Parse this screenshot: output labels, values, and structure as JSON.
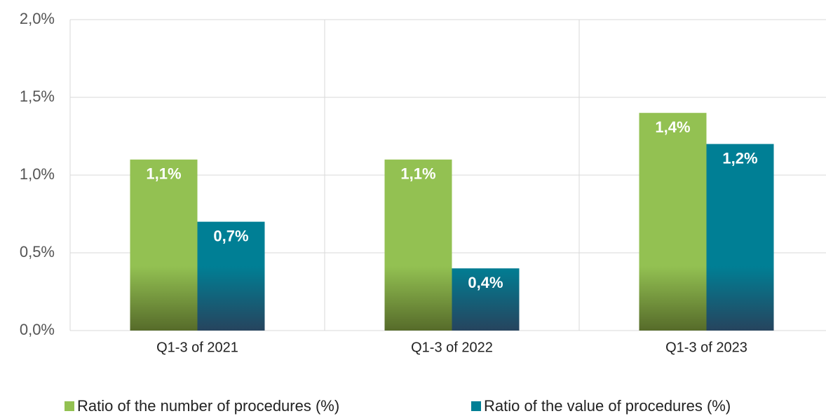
{
  "chart_data": {
    "type": "bar",
    "categories": [
      "Q1-3 of 2021",
      "Q1-3 of 2022",
      "Q1-3 of 2023"
    ],
    "series": [
      {
        "name": "Ratio of the number of procedures (%)",
        "color": "#93c152",
        "values": [
          1.1,
          1.1,
          1.4
        ],
        "value_labels": [
          "1,1%",
          "1,1%",
          "1,4%"
        ]
      },
      {
        "name": "Ratio of the value of procedures (%)",
        "color": "#007f95",
        "values": [
          0.7,
          0.4,
          1.2
        ],
        "value_labels": [
          "0,7%",
          "0,4%",
          "1,2%"
        ]
      }
    ],
    "ylim": [
      0,
      2
    ],
    "yticks": [
      {
        "value": 0,
        "label": "0,0%"
      },
      {
        "value": 0.5,
        "label": "0,5%"
      },
      {
        "value": 1,
        "label": "1,0%"
      },
      {
        "value": 1.5,
        "label": "1,5%"
      },
      {
        "value": 2,
        "label": "2,0%"
      }
    ],
    "grid": true,
    "legend": "bottom"
  }
}
